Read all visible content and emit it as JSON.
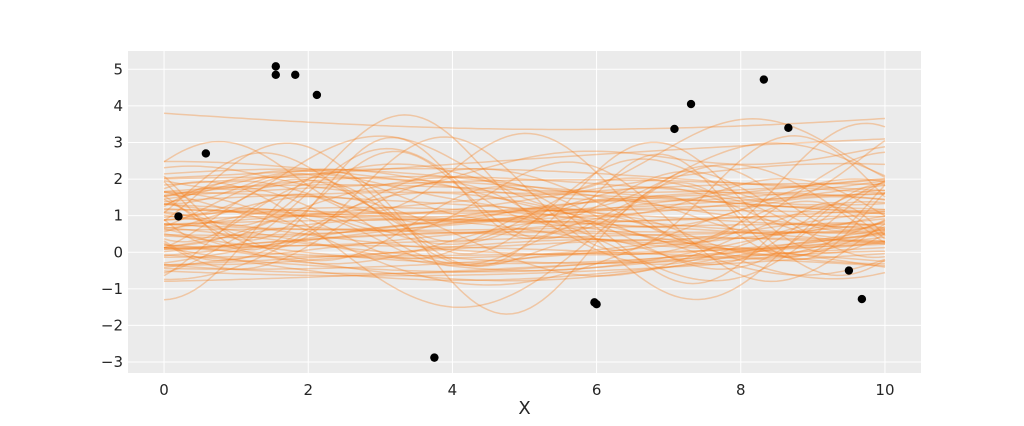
{
  "chart_data": {
    "type": "line",
    "title": "",
    "xlabel": "X",
    "ylabel": "",
    "xlim": [
      -0.5,
      10.5
    ],
    "ylim": [
      -3.3,
      5.5
    ],
    "xticks": [
      0,
      2,
      4,
      6,
      8,
      10
    ],
    "yticks": [
      -3,
      -2,
      -1,
      0,
      1,
      2,
      3,
      4,
      5
    ],
    "xtick_labels": [
      "0",
      "2",
      "4",
      "6",
      "8",
      "10"
    ],
    "ytick_labels": [
      "−3",
      "−2",
      "−1",
      "0",
      "1",
      "2",
      "3",
      "4",
      "5"
    ],
    "grid": true,
    "legend": "none",
    "colors": {
      "background": "#ebebeb",
      "grid": "#ffffff",
      "curves": "#f58220",
      "points": "#000000"
    },
    "curve_count": 80,
    "curve_x_range": [
      0,
      10
    ],
    "curve_opacity": 0.35,
    "points": [
      {
        "x": 0.2,
        "y": 0.98
      },
      {
        "x": 0.58,
        "y": 2.7
      },
      {
        "x": 1.55,
        "y": 5.08
      },
      {
        "x": 1.55,
        "y": 4.85
      },
      {
        "x": 1.82,
        "y": 4.85
      },
      {
        "x": 2.12,
        "y": 4.3
      },
      {
        "x": 3.75,
        "y": -2.88
      },
      {
        "x": 5.97,
        "y": -1.37
      },
      {
        "x": 6.0,
        "y": -1.42
      },
      {
        "x": 7.08,
        "y": 3.37
      },
      {
        "x": 7.31,
        "y": 4.05
      },
      {
        "x": 8.32,
        "y": 4.72
      },
      {
        "x": 8.66,
        "y": 3.4
      },
      {
        "x": 9.5,
        "y": -0.5
      },
      {
        "x": 9.68,
        "y": -1.28
      }
    ]
  }
}
